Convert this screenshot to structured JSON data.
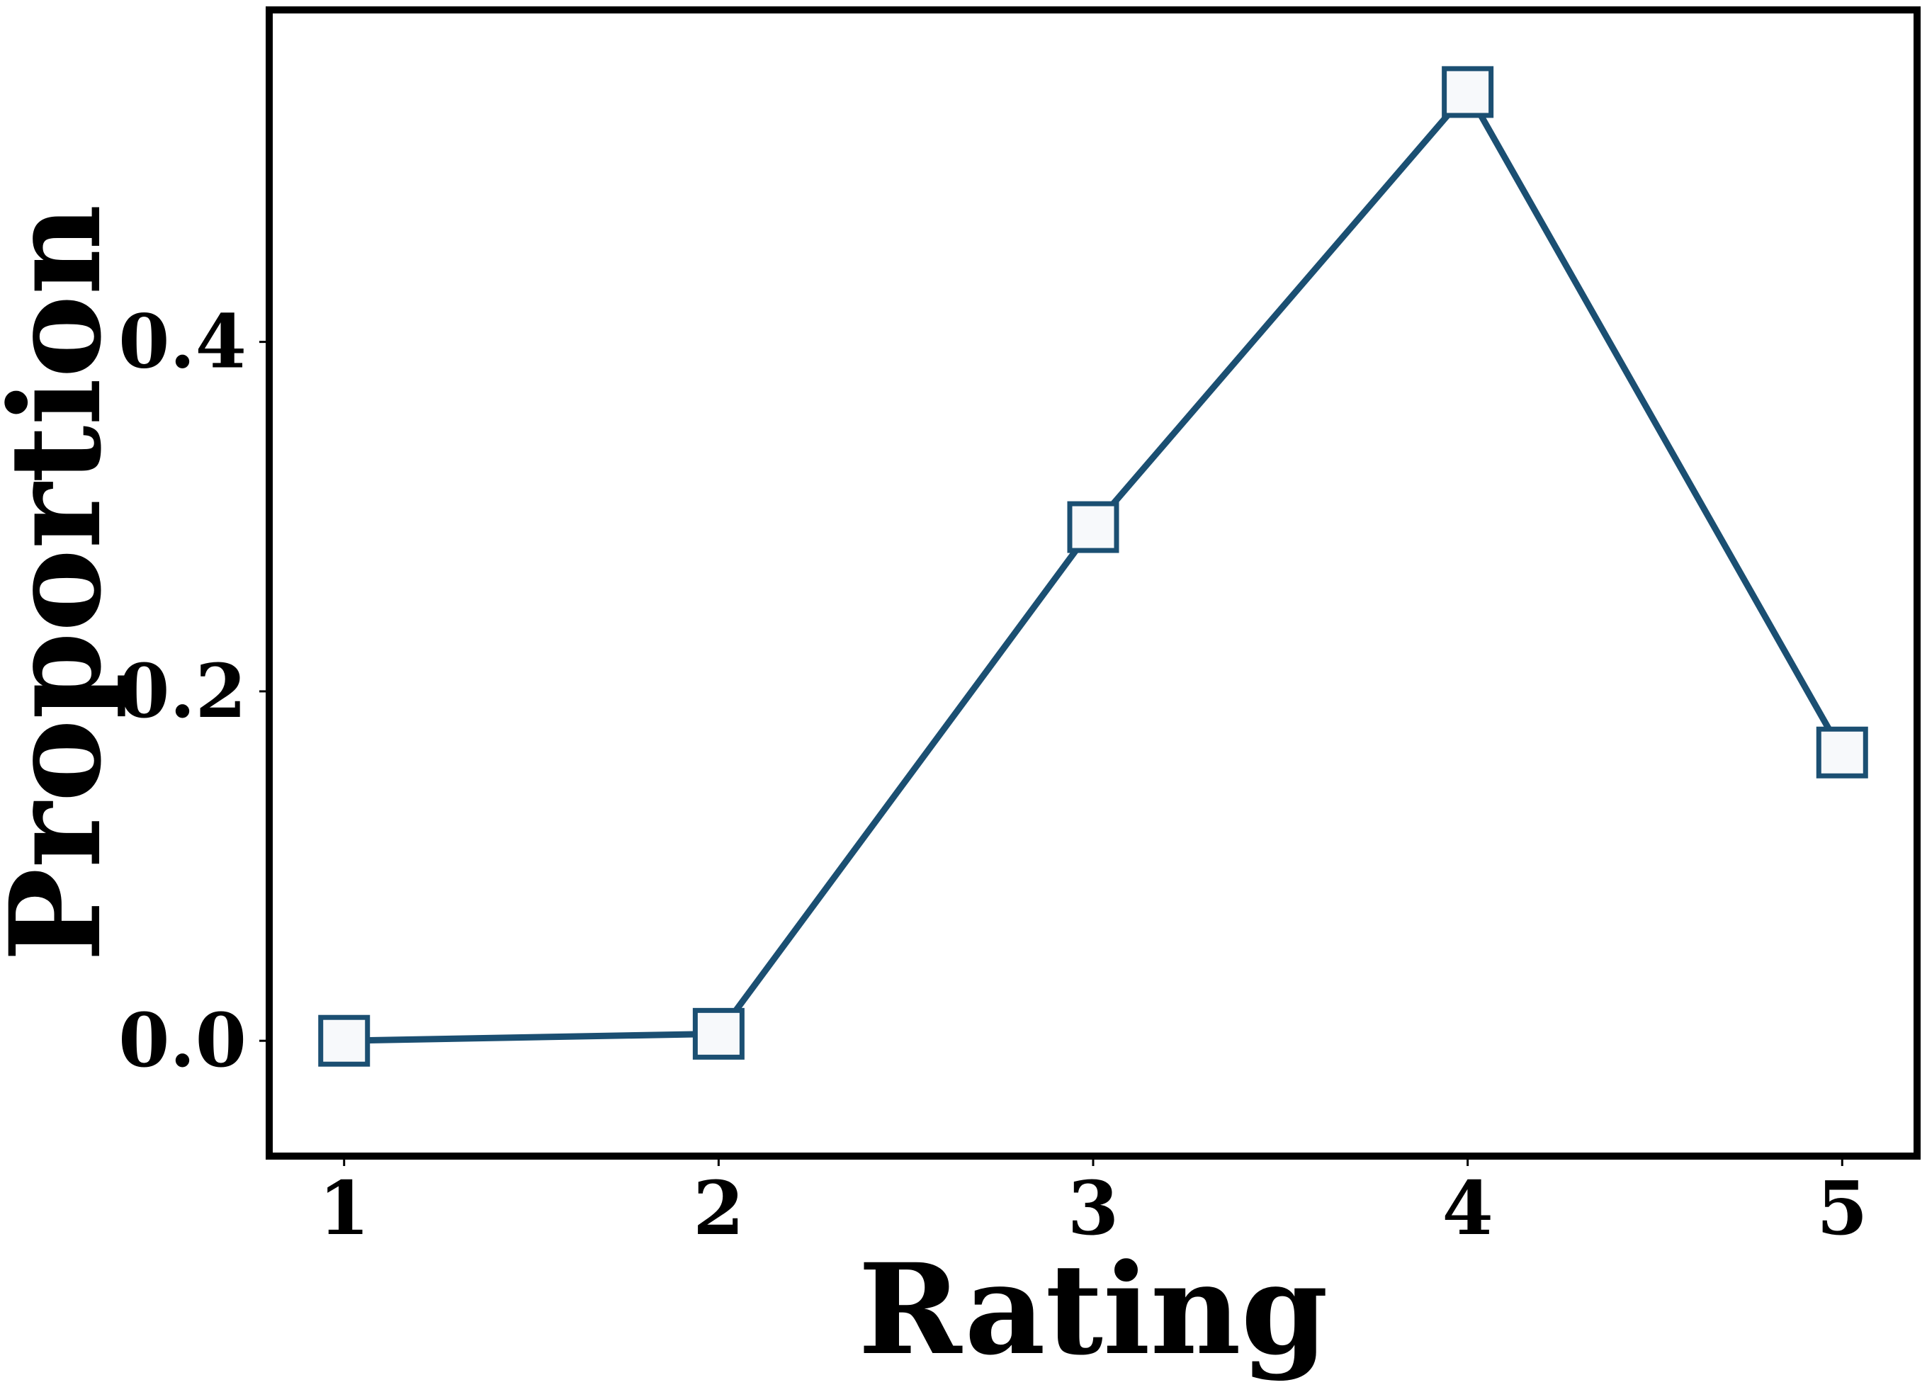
{
  "chart_data": {
    "type": "line",
    "xlabel": "Rating",
    "ylabel": "Proportion",
    "x": [
      1,
      2,
      3,
      4,
      5
    ],
    "series": [
      {
        "values": [
          0.0,
          0.004,
          0.294,
          0.543,
          0.165
        ],
        "color": "#1b4f72",
        "marker": "square",
        "marker_fill": "#f7f9fb"
      }
    ],
    "x_ticks": [
      1,
      2,
      3,
      4,
      5
    ],
    "x_tick_labels": [
      "1",
      "2",
      "3",
      "4",
      "5"
    ],
    "y_ticks": [
      0.0,
      0.2,
      0.4
    ],
    "y_tick_labels": [
      "0.0",
      "0.2",
      "0.4"
    ],
    "xlim": [
      0.8,
      5.2
    ],
    "ylim": [
      -0.066,
      0.59
    ],
    "grid": false,
    "legend": "none"
  }
}
